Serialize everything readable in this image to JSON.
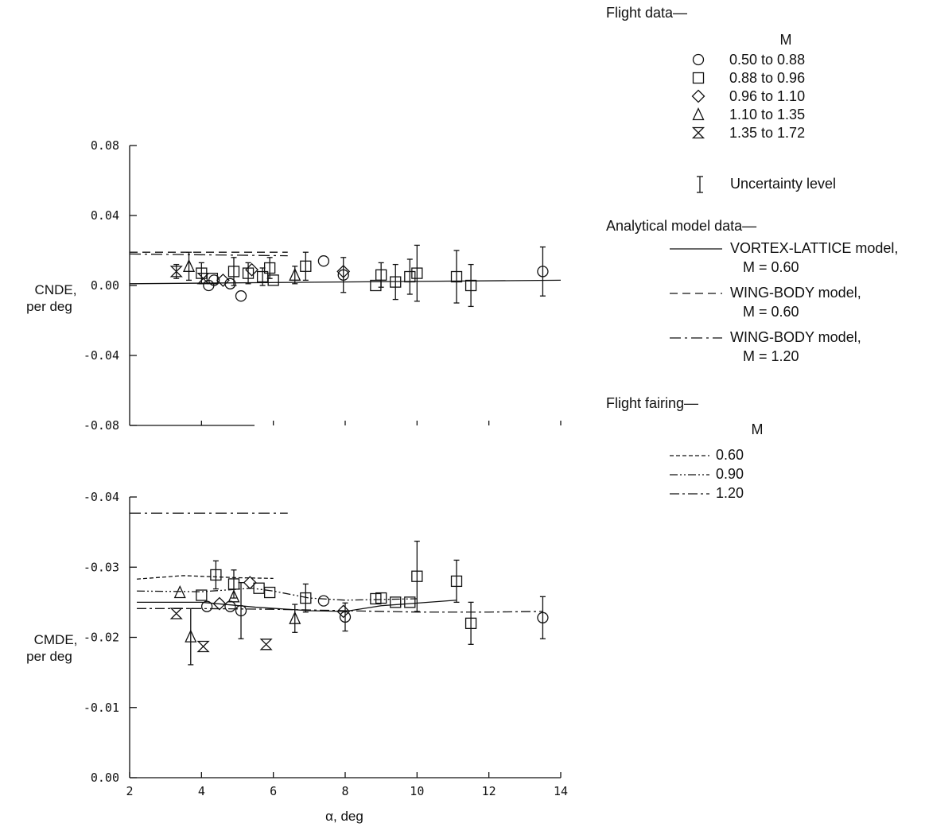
{
  "chart_data": [
    {
      "type": "scatter",
      "panel": "top",
      "ylabel_line1": "CNDE,",
      "ylabel_line2": "per deg",
      "ylim": [
        -0.08,
        0.08
      ],
      "yticks": [
        "0.08",
        "0.04",
        "0.00",
        "-0.04",
        "-0.08"
      ],
      "xlim": [
        2,
        14
      ],
      "xtick_marks_only": [
        4,
        6,
        8,
        10,
        12,
        14
      ],
      "grid": false,
      "series": [
        {
          "key": "m050",
          "points": [
            [
              4.2,
              0.0
            ],
            [
              4.35,
              0.003
            ],
            [
              4.8,
              0.001
            ],
            [
              5.1,
              -0.006
            ],
            [
              7.4,
              0.014
            ],
            [
              7.95,
              0.006
            ],
            [
              13.5,
              0.008
            ]
          ]
        },
        {
          "key": "m088",
          "points": [
            [
              4.0,
              0.007
            ],
            [
              4.3,
              0.004
            ],
            [
              4.9,
              0.008
            ],
            [
              5.3,
              0.007
            ],
            [
              5.7,
              0.005
            ],
            [
              5.9,
              0.01
            ],
            [
              6.0,
              0.003
            ],
            [
              6.9,
              0.011
            ],
            [
              8.85,
              0.0
            ],
            [
              9.0,
              0.006
            ],
            [
              9.4,
              0.002
            ],
            [
              9.8,
              0.005
            ],
            [
              10.0,
              0.007
            ],
            [
              11.1,
              0.005
            ],
            [
              11.5,
              0.0
            ]
          ]
        },
        {
          "key": "m096",
          "points": [
            [
              4.6,
              0.003
            ],
            [
              5.4,
              0.009
            ],
            [
              7.95,
              0.008
            ]
          ]
        },
        {
          "key": "m110",
          "points": [
            [
              3.65,
              0.011
            ],
            [
              6.6,
              0.006
            ]
          ]
        },
        {
          "key": "m135",
          "points": [
            [
              3.3,
              0.008
            ],
            [
              4.05,
              0.004
            ]
          ]
        }
      ],
      "uncertainty_bars": [
        [
          3.3,
          0.004
        ],
        [
          3.65,
          0.008
        ],
        [
          4.0,
          0.006
        ],
        [
          4.9,
          0.008
        ],
        [
          5.3,
          0.006
        ],
        [
          5.7,
          0.005
        ],
        [
          5.9,
          0.006
        ],
        [
          6.6,
          0.005
        ],
        [
          6.9,
          0.008
        ],
        [
          7.95,
          0.01
        ],
        [
          9.0,
          0.007
        ],
        [
          9.4,
          0.01
        ],
        [
          9.8,
          0.01
        ],
        [
          10.0,
          0.016
        ],
        [
          11.1,
          0.015
        ],
        [
          11.5,
          0.012
        ],
        [
          13.5,
          0.014
        ]
      ],
      "lines": [
        {
          "key": "vortex",
          "points": [
            [
              2,
              0.001
            ],
            [
              14,
              0.003
            ]
          ]
        },
        {
          "key": "wb060",
          "points": [
            [
              2,
              0.019
            ],
            [
              6.4,
              0.019
            ]
          ]
        },
        {
          "key": "wb120",
          "points": [
            [
              2,
              0.018
            ],
            [
              6.4,
              0.017
            ]
          ]
        }
      ]
    },
    {
      "type": "scatter",
      "panel": "bottom",
      "ylabel_line1": "CMDE,",
      "ylabel_line2": "per deg",
      "ylim": [
        0.0,
        -0.04
      ],
      "yticks": [
        "-0.04",
        "-0.03",
        "-0.02",
        "-0.01",
        "0.00"
      ],
      "xlabel": "α, deg",
      "xlim": [
        2,
        14
      ],
      "xticks": [
        "2",
        "4",
        "6",
        "8",
        "10",
        "12",
        "14"
      ],
      "grid": false,
      "series": [
        {
          "key": "m050",
          "points": [
            [
              4.15,
              -0.0244
            ],
            [
              4.8,
              -0.0244
            ],
            [
              5.1,
              -0.0238
            ],
            [
              7.4,
              -0.0252
            ],
            [
              8.0,
              -0.0229
            ],
            [
              13.5,
              -0.0228
            ]
          ]
        },
        {
          "key": "m088",
          "points": [
            [
              4.0,
              -0.026
            ],
            [
              4.4,
              -0.0289
            ],
            [
              4.9,
              -0.0276
            ],
            [
              5.6,
              -0.027
            ],
            [
              5.9,
              -0.0264
            ],
            [
              6.9,
              -0.0256
            ],
            [
              8.85,
              -0.0255
            ],
            [
              9.0,
              -0.0256
            ],
            [
              9.4,
              -0.025
            ],
            [
              9.8,
              -0.025
            ],
            [
              10.0,
              -0.0287
            ],
            [
              11.1,
              -0.028
            ],
            [
              11.5,
              -0.022
            ]
          ]
        },
        {
          "key": "m096",
          "points": [
            [
              4.5,
              -0.0248
            ],
            [
              5.35,
              -0.0278
            ],
            [
              7.95,
              -0.0237
            ]
          ]
        },
        {
          "key": "m110",
          "points": [
            [
              3.4,
              -0.0264
            ],
            [
              3.7,
              -0.0201
            ],
            [
              4.9,
              -0.0258
            ],
            [
              6.6,
              -0.0227
            ]
          ]
        },
        {
          "key": "m135",
          "points": [
            [
              3.3,
              -0.0234
            ],
            [
              4.05,
              -0.0187
            ],
            [
              5.8,
              -0.019
            ]
          ]
        }
      ],
      "uncertainty_bars": [
        [
          3.7,
          0.004
        ],
        [
          4.4,
          0.002
        ],
        [
          4.9,
          0.002
        ],
        [
          5.1,
          0.004
        ],
        [
          6.6,
          0.002
        ],
        [
          6.9,
          0.002
        ],
        [
          8.0,
          0.002
        ],
        [
          10.0,
          0.005
        ],
        [
          11.1,
          0.003
        ],
        [
          11.5,
          0.003
        ],
        [
          13.5,
          0.003
        ]
      ],
      "lines": [
        {
          "key": "wb120",
          "points": [
            [
              2,
              -0.0377
            ],
            [
              6.4,
              -0.0377
            ]
          ]
        },
        {
          "key": "fair060",
          "points": [
            [
              2.2,
              -0.0283
            ],
            [
              3.5,
              -0.0288
            ],
            [
              5.0,
              -0.0285
            ],
            [
              6.0,
              -0.0284
            ]
          ]
        },
        {
          "key": "fair090",
          "points": [
            [
              2.2,
              -0.0266
            ],
            [
              4.0,
              -0.0265
            ],
            [
              5.4,
              -0.027
            ],
            [
              6.0,
              -0.0266
            ],
            [
              7.0,
              -0.0256
            ],
            [
              8.0,
              -0.0253
            ],
            [
              9.0,
              -0.0254
            ],
            [
              10.0,
              -0.0255
            ]
          ]
        },
        {
          "key": "vortex",
          "points": [
            [
              2.2,
              -0.025
            ],
            [
              4.0,
              -0.025
            ],
            [
              5.5,
              -0.0243
            ],
            [
              7.0,
              -0.0238
            ],
            [
              8.0,
              -0.0237
            ],
            [
              9.0,
              -0.0245
            ],
            [
              11.1,
              -0.0253
            ]
          ]
        },
        {
          "key": "fair120",
          "points": [
            [
              2.2,
              -0.0241
            ],
            [
              4.0,
              -0.0241
            ],
            [
              6.0,
              -0.024
            ],
            [
              8.0,
              -0.0238
            ],
            [
              10.0,
              -0.0236
            ],
            [
              12.0,
              -0.0236
            ],
            [
              13.5,
              -0.0237
            ]
          ]
        }
      ]
    }
  ],
  "legend": {
    "flight_heading": "Flight data—",
    "flight_m_heading": "M",
    "flight_items": [
      {
        "key": "m050",
        "marker": "circle",
        "label": "0.50 to 0.88"
      },
      {
        "key": "m088",
        "marker": "square",
        "label": "0.88 to 0.96"
      },
      {
        "key": "m096",
        "marker": "diamond",
        "label": "0.96 to 1.10"
      },
      {
        "key": "m110",
        "marker": "triangle",
        "label": "1.10 to 1.35"
      },
      {
        "key": "m135",
        "marker": "hourglass",
        "label": "1.35 to 1.72"
      }
    ],
    "uncertainty_label": "Uncertainty level",
    "analytical_heading": "Analytical model data—",
    "analytical_items": [
      {
        "key": "vortex",
        "dash": "",
        "line1": "VORTEX-LATTICE model,",
        "line2": "M = 0.60"
      },
      {
        "key": "wb060",
        "dash": "10 6",
        "line1": "WING-BODY model,",
        "line2": "M = 0.60"
      },
      {
        "key": "wb120",
        "dash": "14 5 3 5",
        "line1": "WING-BODY model,",
        "line2": "M = 1.20"
      }
    ],
    "fairing_heading": "Flight fairing—",
    "fairing_m_heading": "M",
    "fairing_items": [
      {
        "key": "fair060",
        "dash": "5 3",
        "label": "0.60"
      },
      {
        "key": "fair090",
        "dash": "10 3 2 3 2 3",
        "label": "0.90"
      },
      {
        "key": "fair120",
        "dash": "12 4 3 4",
        "label": "1.20"
      }
    ]
  }
}
